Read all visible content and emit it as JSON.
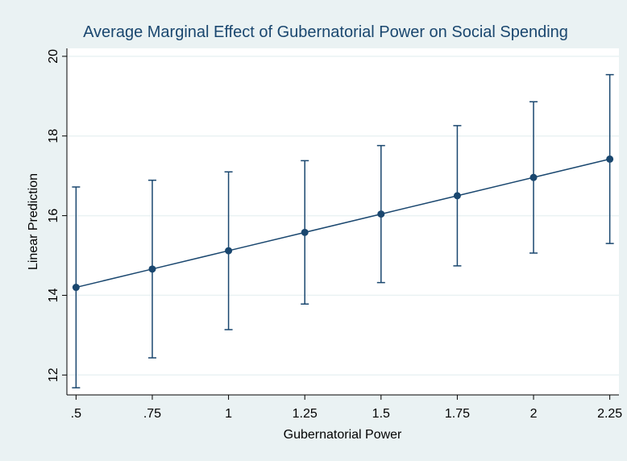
{
  "chart_data": {
    "type": "errorbar-line",
    "title": "Average Marginal Effect of Gubernatorial Power on Social Spending",
    "x_label": "Gubernatorial Power",
    "y_label": "Linear Prediction",
    "x": [
      0.5,
      0.75,
      1,
      1.25,
      1.5,
      1.75,
      2,
      2.25
    ],
    "values": [
      14.2,
      14.66,
      15.12,
      15.58,
      16.04,
      16.5,
      16.96,
      17.42
    ],
    "lower": [
      11.68,
      12.43,
      13.14,
      13.78,
      14.32,
      14.74,
      15.06,
      15.3
    ],
    "upper": [
      16.72,
      16.89,
      17.1,
      17.38,
      17.76,
      18.26,
      18.86,
      19.54
    ],
    "color": "#1a476f",
    "xlim": [
      0.47,
      2.28
    ],
    "ylim": [
      11.5,
      20.2
    ],
    "xticks": [
      {
        "value": 0.5,
        "label": ".5"
      },
      {
        "value": 0.75,
        "label": ".75"
      },
      1,
      1.25,
      1.5,
      1.75,
      2,
      2.25
    ],
    "yticks": [
      12,
      14,
      16,
      18,
      20
    ],
    "grid": true
  }
}
